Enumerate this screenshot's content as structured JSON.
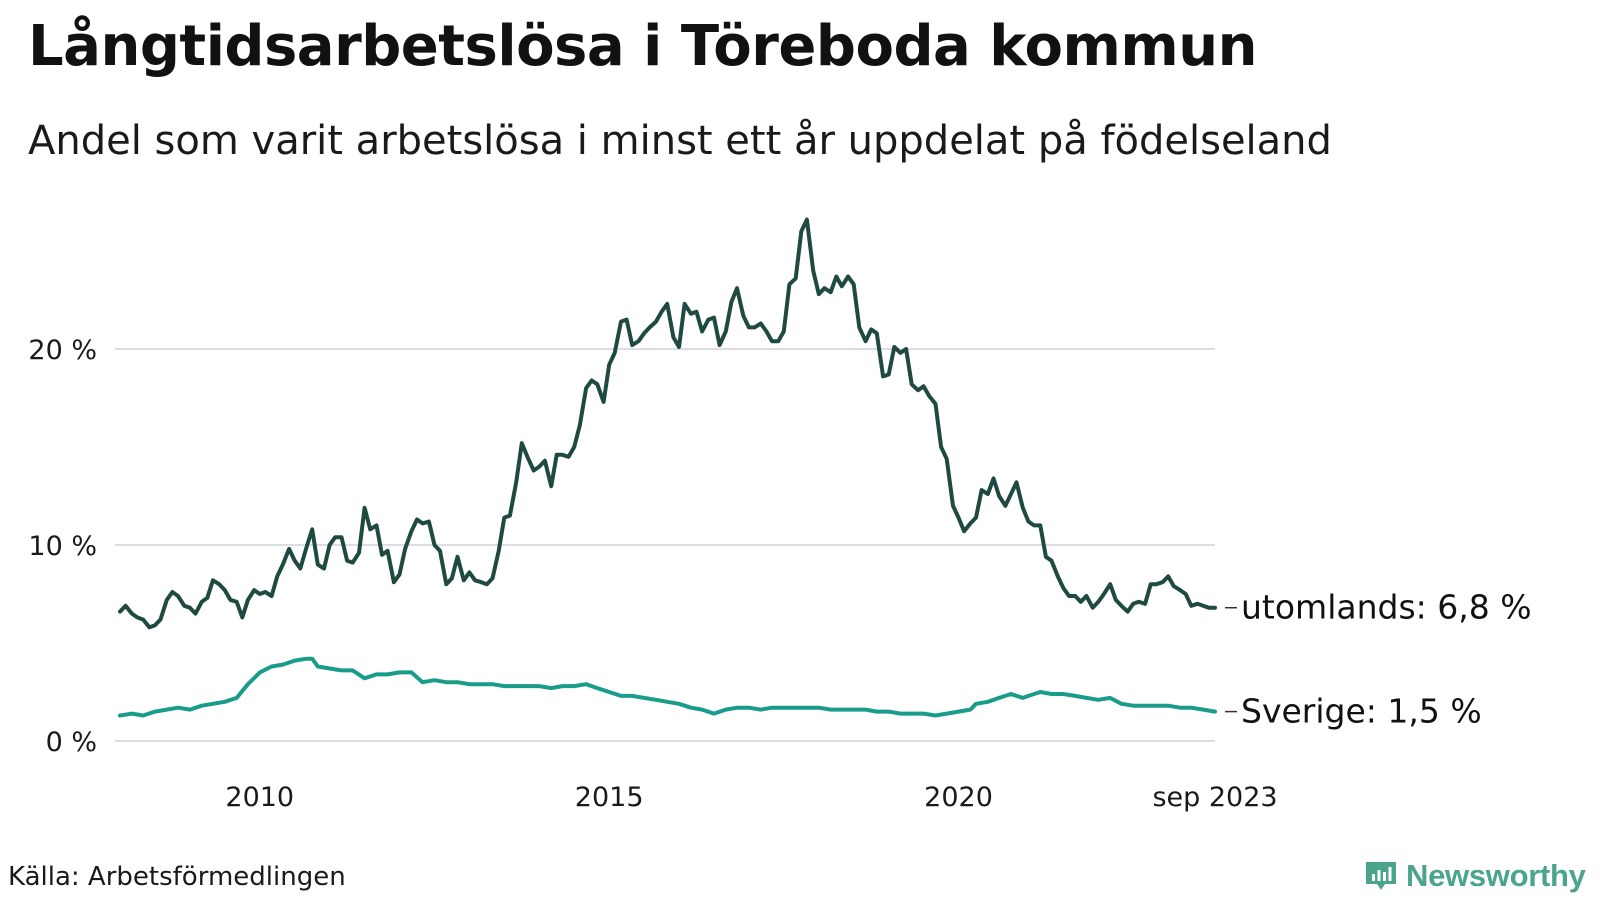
{
  "title": "Långtidsarbetslösa i Töreboda kommun",
  "subtitle": "Andel som varit arbetslösa i minst ett år uppdelat på födelseland",
  "source": "Källa: Arbetsförmedlingen",
  "logo": {
    "text": "Newsworthy",
    "icon": "bar-chart-icon",
    "color": "#4ba58c"
  },
  "chart_data": {
    "type": "line",
    "title": "Långtidsarbetslösa i Töreboda kommun",
    "subtitle": "Andel som varit arbetslösa i minst ett år uppdelat på födelseland",
    "xlabel": "",
    "ylabel": "",
    "xlim": [
      2008.0,
      2023.67
    ],
    "ylim": [
      0,
      27
    ],
    "y_ticks": [
      {
        "value": 0,
        "label": "0 %"
      },
      {
        "value": 10,
        "label": "10 %"
      },
      {
        "value": 20,
        "label": "20 %"
      }
    ],
    "x_ticks": [
      {
        "value": 2010,
        "label": "2010"
      },
      {
        "value": 2015,
        "label": "2015"
      },
      {
        "value": 2020,
        "label": "2020"
      },
      {
        "value": 2023.67,
        "label": "sep 2023"
      }
    ],
    "grid": "horizontal",
    "series": [
      {
        "name": "utomlands",
        "label": "utomlands: 6,8 %",
        "color": "#1f4a42",
        "points": [
          [
            2008.0,
            6.6
          ],
          [
            2008.08,
            6.9
          ],
          [
            2008.17,
            6.5
          ],
          [
            2008.25,
            6.3
          ],
          [
            2008.33,
            6.2
          ],
          [
            2008.42,
            5.8
          ],
          [
            2008.5,
            5.9
          ],
          [
            2008.58,
            6.2
          ],
          [
            2008.67,
            7.2
          ],
          [
            2008.75,
            7.6
          ],
          [
            2008.83,
            7.4
          ],
          [
            2008.92,
            6.9
          ],
          [
            2009.0,
            6.8
          ],
          [
            2009.08,
            6.5
          ],
          [
            2009.17,
            7.1
          ],
          [
            2009.25,
            7.3
          ],
          [
            2009.33,
            8.2
          ],
          [
            2009.42,
            8.0
          ],
          [
            2009.5,
            7.7
          ],
          [
            2009.58,
            7.2
          ],
          [
            2009.67,
            7.1
          ],
          [
            2009.75,
            6.3
          ],
          [
            2009.83,
            7.2
          ],
          [
            2009.92,
            7.7
          ],
          [
            2010.0,
            7.5
          ],
          [
            2010.08,
            7.6
          ],
          [
            2010.17,
            7.4
          ],
          [
            2010.25,
            8.4
          ],
          [
            2010.33,
            9.0
          ],
          [
            2010.42,
            9.8
          ],
          [
            2010.5,
            9.2
          ],
          [
            2010.58,
            8.8
          ],
          [
            2010.67,
            9.9
          ],
          [
            2010.75,
            10.8
          ],
          [
            2010.83,
            9.0
          ],
          [
            2010.92,
            8.8
          ],
          [
            2011.0,
            10.0
          ],
          [
            2011.08,
            10.4
          ],
          [
            2011.17,
            10.4
          ],
          [
            2011.25,
            9.2
          ],
          [
            2011.33,
            9.1
          ],
          [
            2011.42,
            9.6
          ],
          [
            2011.5,
            11.9
          ],
          [
            2011.58,
            10.8
          ],
          [
            2011.67,
            11.0
          ],
          [
            2011.75,
            9.5
          ],
          [
            2011.83,
            9.7
          ],
          [
            2011.92,
            8.1
          ],
          [
            2012.0,
            8.5
          ],
          [
            2012.08,
            9.8
          ],
          [
            2012.17,
            10.7
          ],
          [
            2012.25,
            11.3
          ],
          [
            2012.33,
            11.1
          ],
          [
            2012.42,
            11.2
          ],
          [
            2012.5,
            10.0
          ],
          [
            2012.58,
            9.7
          ],
          [
            2012.67,
            8.0
          ],
          [
            2012.75,
            8.3
          ],
          [
            2012.83,
            9.4
          ],
          [
            2012.92,
            8.2
          ],
          [
            2013.0,
            8.6
          ],
          [
            2013.08,
            8.2
          ],
          [
            2013.17,
            8.1
          ],
          [
            2013.25,
            8.0
          ],
          [
            2013.33,
            8.3
          ],
          [
            2013.42,
            9.7
          ],
          [
            2013.5,
            11.4
          ],
          [
            2013.58,
            11.5
          ],
          [
            2013.67,
            13.2
          ],
          [
            2013.75,
            15.2
          ],
          [
            2013.83,
            14.5
          ],
          [
            2013.92,
            13.8
          ],
          [
            2014.0,
            14.0
          ],
          [
            2014.08,
            14.3
          ],
          [
            2014.17,
            13.0
          ],
          [
            2014.25,
            14.6
          ],
          [
            2014.33,
            14.6
          ],
          [
            2014.42,
            14.5
          ],
          [
            2014.5,
            15.0
          ],
          [
            2014.58,
            16.1
          ],
          [
            2014.67,
            18.0
          ],
          [
            2014.75,
            18.4
          ],
          [
            2014.83,
            18.2
          ],
          [
            2014.92,
            17.3
          ],
          [
            2015.0,
            19.2
          ],
          [
            2015.08,
            19.8
          ],
          [
            2015.17,
            21.4
          ],
          [
            2015.25,
            21.5
          ],
          [
            2015.33,
            20.2
          ],
          [
            2015.42,
            20.4
          ],
          [
            2015.5,
            20.8
          ],
          [
            2015.58,
            21.1
          ],
          [
            2015.67,
            21.4
          ],
          [
            2015.75,
            21.9
          ],
          [
            2015.83,
            22.3
          ],
          [
            2015.92,
            20.6
          ],
          [
            2016.0,
            20.1
          ],
          [
            2016.08,
            22.3
          ],
          [
            2016.17,
            21.8
          ],
          [
            2016.25,
            21.9
          ],
          [
            2016.33,
            20.9
          ],
          [
            2016.42,
            21.5
          ],
          [
            2016.5,
            21.6
          ],
          [
            2016.58,
            20.2
          ],
          [
            2016.67,
            20.9
          ],
          [
            2016.75,
            22.4
          ],
          [
            2016.83,
            23.1
          ],
          [
            2016.92,
            21.7
          ],
          [
            2017.0,
            21.1
          ],
          [
            2017.08,
            21.1
          ],
          [
            2017.17,
            21.3
          ],
          [
            2017.25,
            20.9
          ],
          [
            2017.33,
            20.4
          ],
          [
            2017.42,
            20.4
          ],
          [
            2017.5,
            20.9
          ],
          [
            2017.58,
            23.3
          ],
          [
            2017.67,
            23.6
          ],
          [
            2017.75,
            26.0
          ],
          [
            2017.83,
            26.6
          ],
          [
            2017.92,
            24.0
          ],
          [
            2018.0,
            22.8
          ],
          [
            2018.08,
            23.1
          ],
          [
            2018.17,
            22.9
          ],
          [
            2018.25,
            23.7
          ],
          [
            2018.33,
            23.2
          ],
          [
            2018.42,
            23.7
          ],
          [
            2018.5,
            23.3
          ],
          [
            2018.58,
            21.1
          ],
          [
            2018.67,
            20.4
          ],
          [
            2018.75,
            21.0
          ],
          [
            2018.83,
            20.8
          ],
          [
            2018.92,
            18.6
          ],
          [
            2019.0,
            18.7
          ],
          [
            2019.08,
            20.1
          ],
          [
            2019.17,
            19.8
          ],
          [
            2019.25,
            20.0
          ],
          [
            2019.33,
            18.2
          ],
          [
            2019.42,
            17.9
          ],
          [
            2019.5,
            18.1
          ],
          [
            2019.58,
            17.6
          ],
          [
            2019.67,
            17.2
          ],
          [
            2019.75,
            15.0
          ],
          [
            2019.83,
            14.4
          ],
          [
            2019.92,
            12.0
          ],
          [
            2020.0,
            11.4
          ],
          [
            2020.08,
            10.7
          ],
          [
            2020.17,
            11.1
          ],
          [
            2020.25,
            11.4
          ],
          [
            2020.33,
            12.8
          ],
          [
            2020.42,
            12.6
          ],
          [
            2020.5,
            13.4
          ],
          [
            2020.58,
            12.5
          ],
          [
            2020.67,
            12.0
          ],
          [
            2020.75,
            12.6
          ],
          [
            2020.83,
            13.2
          ],
          [
            2020.92,
            11.9
          ],
          [
            2021.0,
            11.2
          ],
          [
            2021.08,
            11.0
          ],
          [
            2021.17,
            11.0
          ],
          [
            2021.25,
            9.4
          ],
          [
            2021.33,
            9.2
          ],
          [
            2021.42,
            8.4
          ],
          [
            2021.5,
            7.8
          ],
          [
            2021.58,
            7.4
          ],
          [
            2021.67,
            7.4
          ],
          [
            2021.75,
            7.1
          ],
          [
            2021.83,
            7.4
          ],
          [
            2021.92,
            6.8
          ],
          [
            2022.0,
            7.1
          ],
          [
            2022.08,
            7.5
          ],
          [
            2022.17,
            8.0
          ],
          [
            2022.25,
            7.2
          ],
          [
            2022.33,
            6.9
          ],
          [
            2022.42,
            6.6
          ],
          [
            2022.5,
            7.0
          ],
          [
            2022.58,
            7.1
          ],
          [
            2022.67,
            7.0
          ],
          [
            2022.75,
            8.0
          ],
          [
            2022.83,
            8.0
          ],
          [
            2022.92,
            8.1
          ],
          [
            2023.0,
            8.4
          ],
          [
            2023.08,
            7.9
          ],
          [
            2023.17,
            7.7
          ],
          [
            2023.25,
            7.5
          ],
          [
            2023.33,
            6.9
          ],
          [
            2023.42,
            7.0
          ],
          [
            2023.5,
            6.9
          ],
          [
            2023.58,
            6.8
          ],
          [
            2023.67,
            6.8
          ]
        ]
      },
      {
        "name": "Sverige",
        "label": "Sverige: 1,5 %",
        "color": "#1a9c8a",
        "points": [
          [
            2008.0,
            1.3
          ],
          [
            2008.17,
            1.4
          ],
          [
            2008.33,
            1.3
          ],
          [
            2008.5,
            1.5
          ],
          [
            2008.67,
            1.6
          ],
          [
            2008.83,
            1.7
          ],
          [
            2009.0,
            1.6
          ],
          [
            2009.17,
            1.8
          ],
          [
            2009.33,
            1.9
          ],
          [
            2009.5,
            2.0
          ],
          [
            2009.67,
            2.2
          ],
          [
            2009.83,
            2.9
          ],
          [
            2010.0,
            3.5
          ],
          [
            2010.17,
            3.8
          ],
          [
            2010.33,
            3.9
          ],
          [
            2010.5,
            4.1
          ],
          [
            2010.67,
            4.2
          ],
          [
            2010.75,
            4.2
          ],
          [
            2010.83,
            3.8
          ],
          [
            2011.0,
            3.7
          ],
          [
            2011.17,
            3.6
          ],
          [
            2011.33,
            3.6
          ],
          [
            2011.5,
            3.2
          ],
          [
            2011.67,
            3.4
          ],
          [
            2011.83,
            3.4
          ],
          [
            2012.0,
            3.5
          ],
          [
            2012.17,
            3.5
          ],
          [
            2012.33,
            3.0
          ],
          [
            2012.5,
            3.1
          ],
          [
            2012.67,
            3.0
          ],
          [
            2012.83,
            3.0
          ],
          [
            2013.0,
            2.9
          ],
          [
            2013.17,
            2.9
          ],
          [
            2013.33,
            2.9
          ],
          [
            2013.5,
            2.8
          ],
          [
            2013.67,
            2.8
          ],
          [
            2013.83,
            2.8
          ],
          [
            2014.0,
            2.8
          ],
          [
            2014.17,
            2.7
          ],
          [
            2014.33,
            2.8
          ],
          [
            2014.5,
            2.8
          ],
          [
            2014.67,
            2.9
          ],
          [
            2014.83,
            2.7
          ],
          [
            2015.0,
            2.5
          ],
          [
            2015.17,
            2.3
          ],
          [
            2015.33,
            2.3
          ],
          [
            2015.5,
            2.2
          ],
          [
            2015.67,
            2.1
          ],
          [
            2015.83,
            2.0
          ],
          [
            2016.0,
            1.9
          ],
          [
            2016.17,
            1.7
          ],
          [
            2016.33,
            1.6
          ],
          [
            2016.5,
            1.4
          ],
          [
            2016.67,
            1.6
          ],
          [
            2016.83,
            1.7
          ],
          [
            2017.0,
            1.7
          ],
          [
            2017.17,
            1.6
          ],
          [
            2017.33,
            1.7
          ],
          [
            2017.5,
            1.7
          ],
          [
            2017.67,
            1.7
          ],
          [
            2017.83,
            1.7
          ],
          [
            2018.0,
            1.7
          ],
          [
            2018.17,
            1.6
          ],
          [
            2018.33,
            1.6
          ],
          [
            2018.5,
            1.6
          ],
          [
            2018.67,
            1.6
          ],
          [
            2018.83,
            1.5
          ],
          [
            2019.0,
            1.5
          ],
          [
            2019.17,
            1.4
          ],
          [
            2019.33,
            1.4
          ],
          [
            2019.5,
            1.4
          ],
          [
            2019.67,
            1.3
          ],
          [
            2019.83,
            1.4
          ],
          [
            2020.0,
            1.5
          ],
          [
            2020.17,
            1.6
          ],
          [
            2020.25,
            1.9
          ],
          [
            2020.42,
            2.0
          ],
          [
            2020.58,
            2.2
          ],
          [
            2020.75,
            2.4
          ],
          [
            2020.92,
            2.2
          ],
          [
            2021.0,
            2.3
          ],
          [
            2021.17,
            2.5
          ],
          [
            2021.33,
            2.4
          ],
          [
            2021.5,
            2.4
          ],
          [
            2021.67,
            2.3
          ],
          [
            2021.83,
            2.2
          ],
          [
            2022.0,
            2.1
          ],
          [
            2022.17,
            2.2
          ],
          [
            2022.33,
            1.9
          ],
          [
            2022.5,
            1.8
          ],
          [
            2022.67,
            1.8
          ],
          [
            2022.83,
            1.8
          ],
          [
            2023.0,
            1.8
          ],
          [
            2023.17,
            1.7
          ],
          [
            2023.33,
            1.7
          ],
          [
            2023.5,
            1.6
          ],
          [
            2023.67,
            1.5
          ]
        ]
      }
    ]
  }
}
